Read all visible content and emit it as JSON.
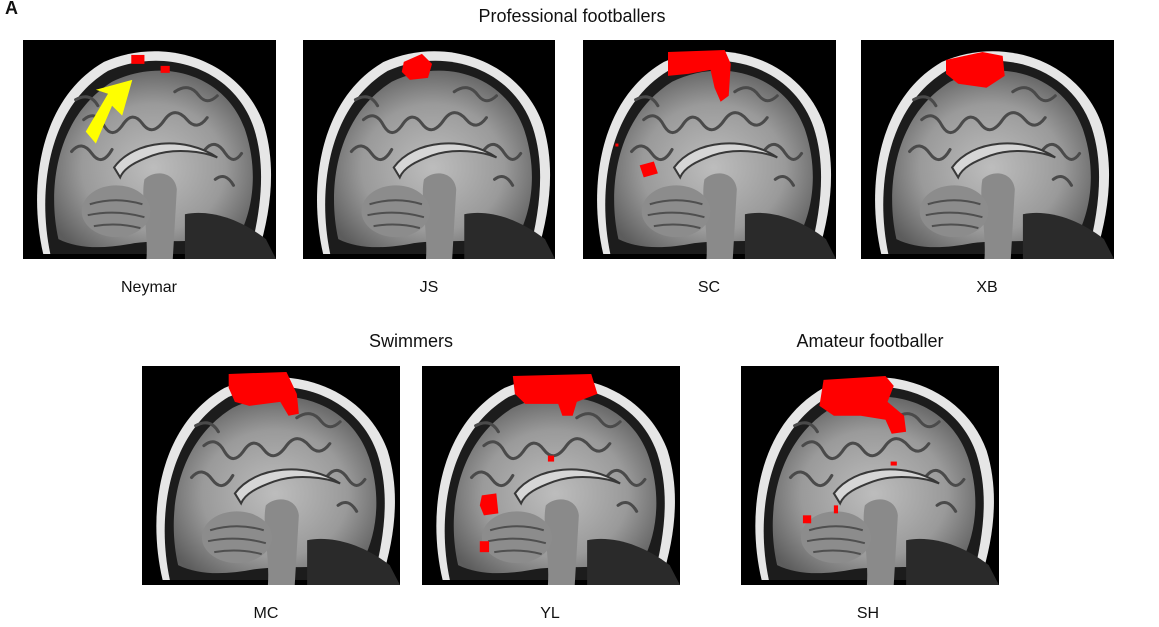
{
  "panel_label": "A",
  "groups": [
    {
      "title": "Professional footballers",
      "subjects": [
        {
          "label": "Neymar",
          "icon": "brain-mri-slice-icon",
          "annotation": "yellow-arrow-icon"
        },
        {
          "label": "JS",
          "icon": "brain-mri-slice-icon"
        },
        {
          "label": "SC",
          "icon": "brain-mri-slice-icon"
        },
        {
          "label": "XB",
          "icon": "brain-mri-slice-icon"
        }
      ]
    },
    {
      "title": "Swimmers",
      "subjects": [
        {
          "label": "MC",
          "icon": "brain-mri-slice-icon"
        },
        {
          "label": "YL",
          "icon": "brain-mri-slice-icon"
        }
      ]
    },
    {
      "title": "Amateur footballer",
      "subjects": [
        {
          "label": "SH",
          "icon": "brain-mri-slice-icon"
        }
      ]
    }
  ],
  "colors": {
    "activation": "#ff0000",
    "arrow": "#ffff00",
    "scan_background": "#000000"
  }
}
